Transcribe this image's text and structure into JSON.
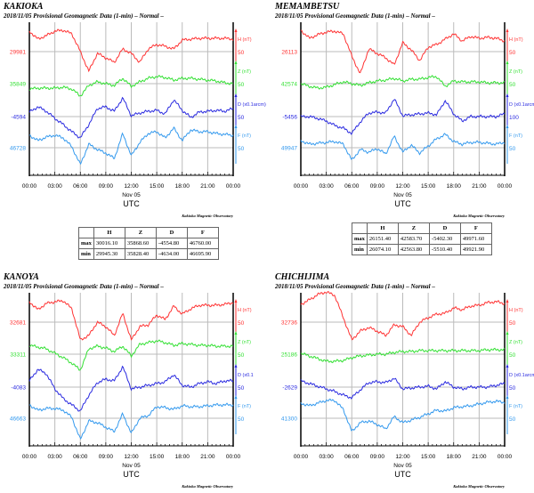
{
  "colors": {
    "H": "#ff3333",
    "Z": "#33e033",
    "D": "#2a2ae0",
    "F": "#3399ee"
  },
  "common": {
    "subtitle": "2018/11/05  Provisional Geomagnetic Data (1-min)  – Normal –",
    "xticks": [
      "00:00",
      "03:00",
      "06:00",
      "09:00",
      "12:00",
      "15:00",
      "18:00",
      "21:00",
      "00:00"
    ],
    "date_label": "Nov 05",
    "xlabel": "UTC",
    "credit": "Kakioka Magnetic Observatory",
    "scale_label": "50"
  },
  "chart_data": [
    {
      "type": "line",
      "station": "KAKIOKA",
      "hours_step": 1,
      "series": [
        {
          "name": "H",
          "unit": "H (nT)",
          "base": "29981",
          "scale": "50",
          "values": [
            46,
            28,
            36,
            46,
            48,
            40,
            0,
            -44,
            -4,
            -14,
            -24,
            6,
            -4,
            -24,
            6,
            16,
            12,
            6,
            26,
            28,
            30,
            30,
            30,
            30,
            28
          ]
        },
        {
          "name": "Z",
          "unit": "Z (nT)",
          "base": "35849",
          "scale": "50",
          "values": [
            -12,
            -10,
            -10,
            -10,
            -8,
            -12,
            -28,
            -4,
            4,
            0,
            -4,
            12,
            -6,
            4,
            12,
            16,
            14,
            8,
            12,
            12,
            10,
            8,
            6,
            2,
            0
          ]
        },
        {
          "name": "D",
          "unit": "D (x0.1arcm)",
          "base": "-4594",
          "scale": "50",
          "values": [
            10,
            22,
            12,
            -4,
            -18,
            -34,
            -48,
            -18,
            18,
            22,
            12,
            42,
            2,
            8,
            12,
            14,
            6,
            38,
            14,
            -2,
            10,
            12,
            14,
            12,
            18
          ]
        },
        {
          "name": "F",
          "unit": "F (nT)",
          "base": "46728",
          "scale": "50",
          "values": [
            28,
            16,
            24,
            28,
            22,
            2,
            -38,
            8,
            -4,
            -12,
            -24,
            32,
            -18,
            12,
            32,
            36,
            22,
            44,
            16,
            40,
            36,
            36,
            32,
            30,
            28
          ]
        }
      ]
    },
    {
      "type": "line",
      "station": "MEMAMBETSU",
      "hours_step": 1,
      "series": [
        {
          "name": "H",
          "unit": "H (nT)",
          "base": "26113",
          "scale": "50",
          "values": [
            48,
            30,
            38,
            44,
            46,
            40,
            -10,
            -50,
            6,
            -4,
            -14,
            -30,
            20,
            4,
            -20,
            10,
            16,
            28,
            40,
            24,
            34,
            30,
            32,
            30,
            24
          ]
        },
        {
          "name": "Z",
          "unit": "Z (nT)",
          "base": "42574",
          "scale": "50",
          "values": [
            0,
            -6,
            -10,
            -8,
            -2,
            4,
            0,
            -4,
            2,
            6,
            8,
            12,
            6,
            10,
            10,
            14,
            16,
            -6,
            6,
            4,
            4,
            4,
            2,
            2,
            2
          ]
        },
        {
          "name": "D",
          "unit": "D (x0.1arcm)",
          "base": "-5456",
          "scale": "100",
          "values": [
            0,
            0,
            -4,
            -10,
            -20,
            -26,
            -38,
            -12,
            8,
            10,
            8,
            40,
            2,
            4,
            6,
            8,
            4,
            36,
            6,
            -10,
            0,
            0,
            0,
            0,
            6
          ]
        },
        {
          "name": "F",
          "unit": "F (nT)",
          "base": "49947",
          "scale": "50",
          "values": [
            16,
            8,
            10,
            12,
            14,
            8,
            -28,
            -4,
            -10,
            -2,
            -14,
            26,
            -10,
            6,
            -12,
            4,
            20,
            30,
            14,
            8,
            12,
            12,
            10,
            8,
            12
          ]
        }
      ]
    },
    {
      "type": "line",
      "station": "KANOYA",
      "hours_step": 1,
      "series": [
        {
          "name": "H",
          "unit": "H (nT)",
          "base": "32681",
          "scale": "50",
          "values": [
            46,
            28,
            42,
            46,
            48,
            30,
            -40,
            -30,
            0,
            -10,
            -30,
            20,
            -40,
            -10,
            -6,
            16,
            6,
            36,
            18,
            30,
            38,
            38,
            38,
            40,
            44
          ]
        },
        {
          "name": "Z",
          "unit": "Z (nT)",
          "base": "33311",
          "scale": "50",
          "values": [
            20,
            16,
            12,
            2,
            -8,
            -20,
            -36,
            12,
            18,
            14,
            6,
            18,
            -4,
            22,
            26,
            30,
            26,
            20,
            24,
            22,
            20,
            20,
            18,
            18,
            18
          ]
        },
        {
          "name": "D",
          "unit": "D (x0.1",
          "base": "-4083",
          "scale": "50",
          "values": [
            14,
            40,
            30,
            -4,
            -26,
            -40,
            -54,
            -18,
            10,
            18,
            14,
            46,
            -4,
            0,
            4,
            8,
            12,
            28,
            4,
            0,
            8,
            12,
            8,
            14,
            14
          ]
        },
        {
          "name": "F",
          "unit": "F (nT)",
          "base": "46663",
          "scale": "50",
          "values": [
            30,
            18,
            22,
            22,
            18,
            2,
            -48,
            -6,
            -10,
            -20,
            -30,
            10,
            -34,
            0,
            6,
            26,
            24,
            20,
            28,
            26,
            26,
            28,
            30,
            30,
            30
          ]
        }
      ]
    },
    {
      "type": "line",
      "station": "CHICHIJIMA",
      "hours_step": 1,
      "series": [
        {
          "name": "H",
          "unit": "H (nT)",
          "base": "32736",
          "scale": "50",
          "values": [
            40,
            50,
            62,
            68,
            60,
            10,
            -40,
            -20,
            -12,
            -20,
            -30,
            -6,
            -10,
            -30,
            0,
            10,
            18,
            20,
            32,
            28,
            36,
            38,
            44,
            46,
            42
          ]
        },
        {
          "name": "Z",
          "unit": "Z (nT)",
          "base": "25186",
          "scale": "50",
          "values": [
            2,
            -4,
            -10,
            -16,
            -16,
            -14,
            -8,
            -4,
            -2,
            0,
            0,
            4,
            6,
            6,
            8,
            8,
            8,
            8,
            8,
            8,
            8,
            8,
            10,
            10,
            10
          ]
        },
        {
          "name": "D",
          "unit": "D (x0.1arcm)",
          "base": "-2629",
          "scale": "50",
          "values": [
            14,
            8,
            2,
            -4,
            -10,
            -18,
            -24,
            -6,
            10,
            12,
            10,
            20,
            -4,
            -2,
            0,
            2,
            -4,
            12,
            0,
            -4,
            0,
            0,
            0,
            4,
            8
          ]
        },
        {
          "name": "F",
          "unit": "F (nT)",
          "base": "41300",
          "scale": "50",
          "values": [
            34,
            28,
            34,
            40,
            40,
            20,
            -30,
            -10,
            -6,
            -14,
            -24,
            4,
            -10,
            -4,
            2,
            10,
            18,
            16,
            24,
            26,
            28,
            32,
            36,
            38,
            36
          ]
        }
      ]
    }
  ],
  "tables": [
    {
      "headers": [
        "",
        "H",
        "Z",
        "D",
        "F"
      ],
      "rows": [
        [
          "max",
          "30016.10",
          "35868.60",
          "-4554.80",
          "46760.00"
        ],
        [
          "min",
          "29945.30",
          "35828.40",
          "-4634.00",
          "46695.90"
        ]
      ]
    },
    {
      "headers": [
        "",
        "H",
        "Z",
        "D",
        "F"
      ],
      "rows": [
        [
          "max",
          "26151.40",
          "42583.70",
          "-5402.30",
          "49971.60"
        ],
        [
          "min",
          "26074.10",
          "42563.80",
          "-5510.40",
          "49921.90"
        ]
      ]
    }
  ]
}
